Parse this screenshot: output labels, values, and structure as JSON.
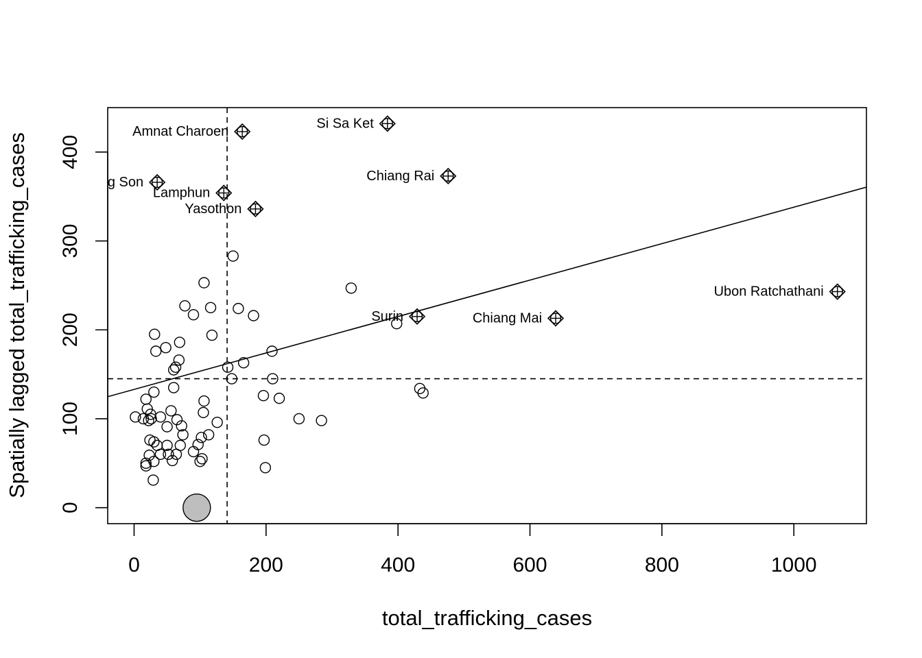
{
  "chart_data": {
    "type": "scatter",
    "title": "",
    "xlabel": "total_trafficking_cases",
    "ylabel": "Spatially lagged total_trafficking_cases",
    "xlim": [
      -40,
      1110
    ],
    "ylim": [
      -18,
      450
    ],
    "xticks": [
      0,
      200,
      400,
      600,
      800,
      1000
    ],
    "yticks": [
      0,
      100,
      200,
      300,
      400
    ],
    "mean_x": 141,
    "mean_y": 145,
    "regression_line": {
      "intercept": 133,
      "slope": 0.205
    },
    "grid": false,
    "legend": "none",
    "points": [
      [
        2,
        102
      ],
      [
        14,
        100
      ],
      [
        18,
        122
      ],
      [
        20,
        111
      ],
      [
        22,
        98
      ],
      [
        25,
        105
      ],
      [
        26,
        100
      ],
      [
        30,
        130
      ],
      [
        31,
        195
      ],
      [
        33,
        176
      ],
      [
        24,
        76
      ],
      [
        30,
        74
      ],
      [
        35,
        70
      ],
      [
        40,
        102
      ],
      [
        40,
        60
      ],
      [
        48,
        180
      ],
      [
        50,
        91
      ],
      [
        50,
        70
      ],
      [
        52,
        60
      ],
      [
        56,
        109
      ],
      [
        58,
        53
      ],
      [
        60,
        135
      ],
      [
        60,
        155
      ],
      [
        63,
        158
      ],
      [
        64,
        60
      ],
      [
        65,
        99
      ],
      [
        68,
        166
      ],
      [
        69,
        186
      ],
      [
        70,
        70
      ],
      [
        72,
        92
      ],
      [
        74,
        82
      ],
      [
        77,
        227
      ],
      [
        18,
        50
      ],
      [
        18,
        47
      ],
      [
        23,
        59
      ],
      [
        30,
        52
      ],
      [
        29,
        31
      ],
      [
        90,
        217
      ],
      [
        90,
        63
      ],
      [
        97,
        71
      ],
      [
        100,
        52
      ],
      [
        102,
        79
      ],
      [
        103,
        55
      ],
      [
        105,
        107
      ],
      [
        106,
        120
      ],
      [
        106,
        253
      ],
      [
        113,
        82
      ],
      [
        116,
        225
      ],
      [
        118,
        194
      ],
      [
        126,
        96
      ],
      [
        142,
        158
      ],
      [
        148,
        145
      ],
      [
        150,
        283
      ],
      [
        158,
        224
      ],
      [
        166,
        163
      ],
      [
        181,
        216
      ],
      [
        196,
        126
      ],
      [
        197,
        76
      ],
      [
        199,
        45
      ],
      [
        209,
        176
      ],
      [
        210,
        145
      ],
      [
        220,
        123
      ],
      [
        250,
        100
      ],
      [
        284,
        98
      ],
      [
        329,
        247
      ],
      [
        398,
        207
      ],
      [
        433,
        134
      ],
      [
        438,
        129
      ]
    ],
    "highlighted": [
      {
        "label": "Amnat Charoen",
        "x": 164,
        "y": 423
      },
      {
        "label": "Si Sa Ket",
        "x": 384,
        "y": 432
      },
      {
        "label": "Mae Hong Son",
        "x": 35,
        "y": 366
      },
      {
        "label": "Lamphun",
        "x": 136,
        "y": 354
      },
      {
        "label": "Yasothon",
        "x": 184,
        "y": 336
      },
      {
        "label": "Chiang Rai",
        "x": 476,
        "y": 373
      },
      {
        "label": "Surin",
        "x": 429,
        "y": 215
      },
      {
        "label": "Chiang Mai",
        "x": 639,
        "y": 213
      },
      {
        "label": "Ubon Ratchathani",
        "x": 1066,
        "y": 243
      }
    ],
    "large_point": {
      "x": 95,
      "y": 0
    }
  }
}
